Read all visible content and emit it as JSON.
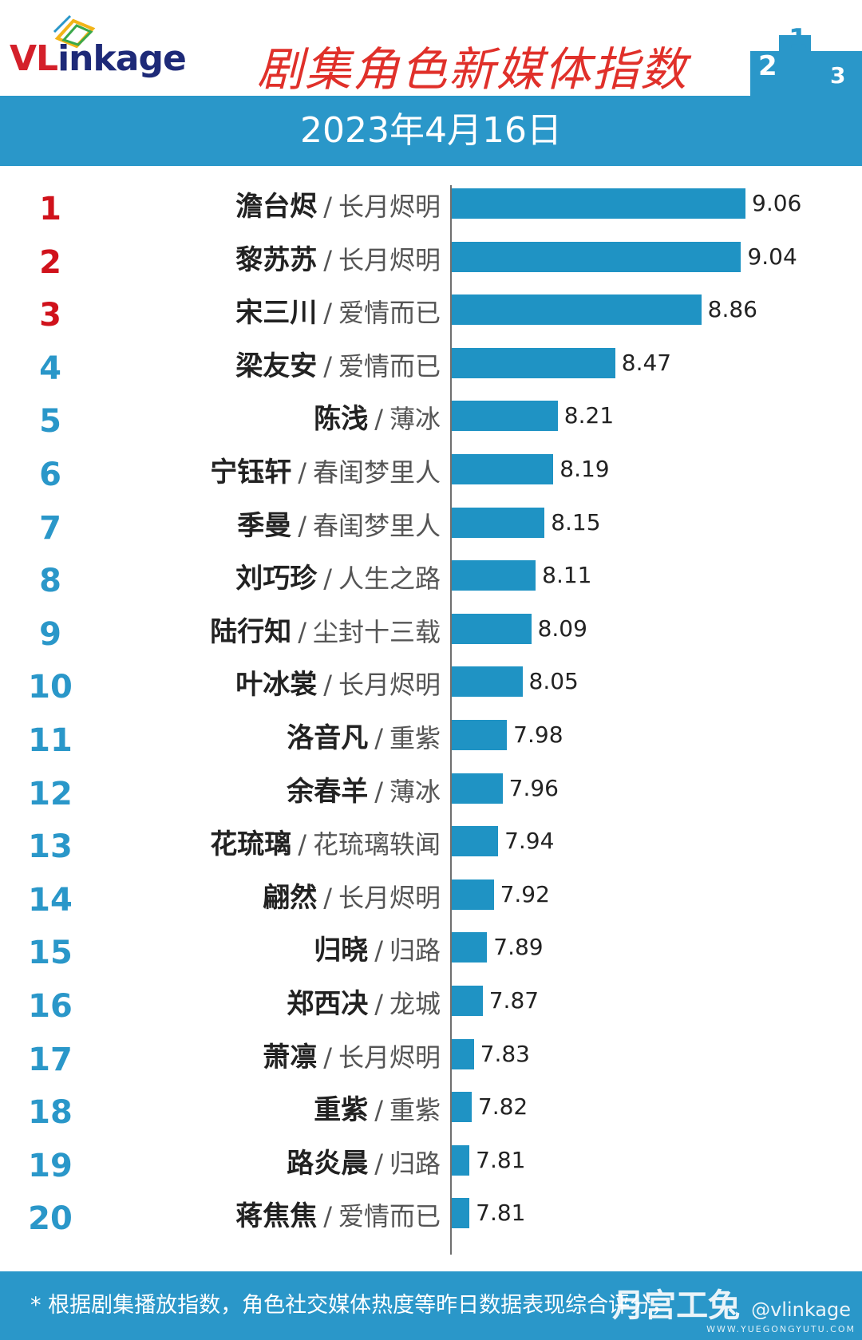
{
  "header": {
    "logo_prefix": "VL",
    "logo_rest": "inkage",
    "title": "剧集角色新媒体指数"
  },
  "date": "2023年4月16日",
  "footer": {
    "note": "* 根据剧集播放指数，角色社交媒体热度等昨日数据表现综合评分，",
    "watermark": "月宫工兔",
    "watermark_handle": "@vlinkage",
    "watermark_site": "WWW.YUEGONGYUTU.COM"
  },
  "colors": {
    "bar": "#1f93c4",
    "banner": "#2a97c9",
    "rank_top": "#d0121b",
    "rank_rest": "#2a97c9",
    "title": "#e0302a"
  },
  "chart_data": {
    "type": "bar",
    "orientation": "horizontal",
    "title": "剧集角色新媒体指数",
    "subtitle": "2023年4月16日",
    "separator": "/",
    "rows": [
      {
        "rank": "1",
        "name": "澹台烬",
        "drama": "长月烬明",
        "value": 9.06
      },
      {
        "rank": "2",
        "name": "黎苏苏",
        "drama": "长月烬明",
        "value": 9.04
      },
      {
        "rank": "3",
        "name": "宋三川",
        "drama": "爱情而已",
        "value": 8.86
      },
      {
        "rank": "4",
        "name": "梁友安",
        "drama": "爱情而已",
        "value": 8.47
      },
      {
        "rank": "5",
        "name": "陈浅",
        "drama": "薄冰",
        "value": 8.21
      },
      {
        "rank": "6",
        "name": "宁钰轩",
        "drama": "春闺梦里人",
        "value": 8.19
      },
      {
        "rank": "7",
        "name": "季曼",
        "drama": "春闺梦里人",
        "value": 8.15
      },
      {
        "rank": "8",
        "name": "刘巧珍",
        "drama": "人生之路",
        "value": 8.11
      },
      {
        "rank": "9",
        "name": "陆行知",
        "drama": "尘封十三载",
        "value": 8.09
      },
      {
        "rank": "10",
        "name": "叶冰裳",
        "drama": "长月烬明",
        "value": 8.05
      },
      {
        "rank": "11",
        "name": "洛音凡",
        "drama": "重紫",
        "value": 7.98
      },
      {
        "rank": "12",
        "name": "余春羊",
        "drama": "薄冰",
        "value": 7.96
      },
      {
        "rank": "13",
        "name": "花琉璃",
        "drama": "花琉璃轶闻",
        "value": 7.94
      },
      {
        "rank": "14",
        "name": "翩然",
        "drama": "长月烬明",
        "value": 7.92
      },
      {
        "rank": "15",
        "name": "归晓",
        "drama": "归路",
        "value": 7.89
      },
      {
        "rank": "16",
        "name": "郑西决",
        "drama": "龙城",
        "value": 7.87
      },
      {
        "rank": "17",
        "name": "萧凛",
        "drama": "长月烬明",
        "value": 7.83
      },
      {
        "rank": "18",
        "name": "重紫",
        "drama": "重紫",
        "value": 7.82
      },
      {
        "rank": "19",
        "name": "路炎晨",
        "drama": "归路",
        "value": 7.81
      },
      {
        "rank": "20",
        "name": "蒋焦焦",
        "drama": "爱情而已",
        "value": 7.81
      }
    ],
    "xlim": [
      7.73,
      9.06
    ]
  }
}
